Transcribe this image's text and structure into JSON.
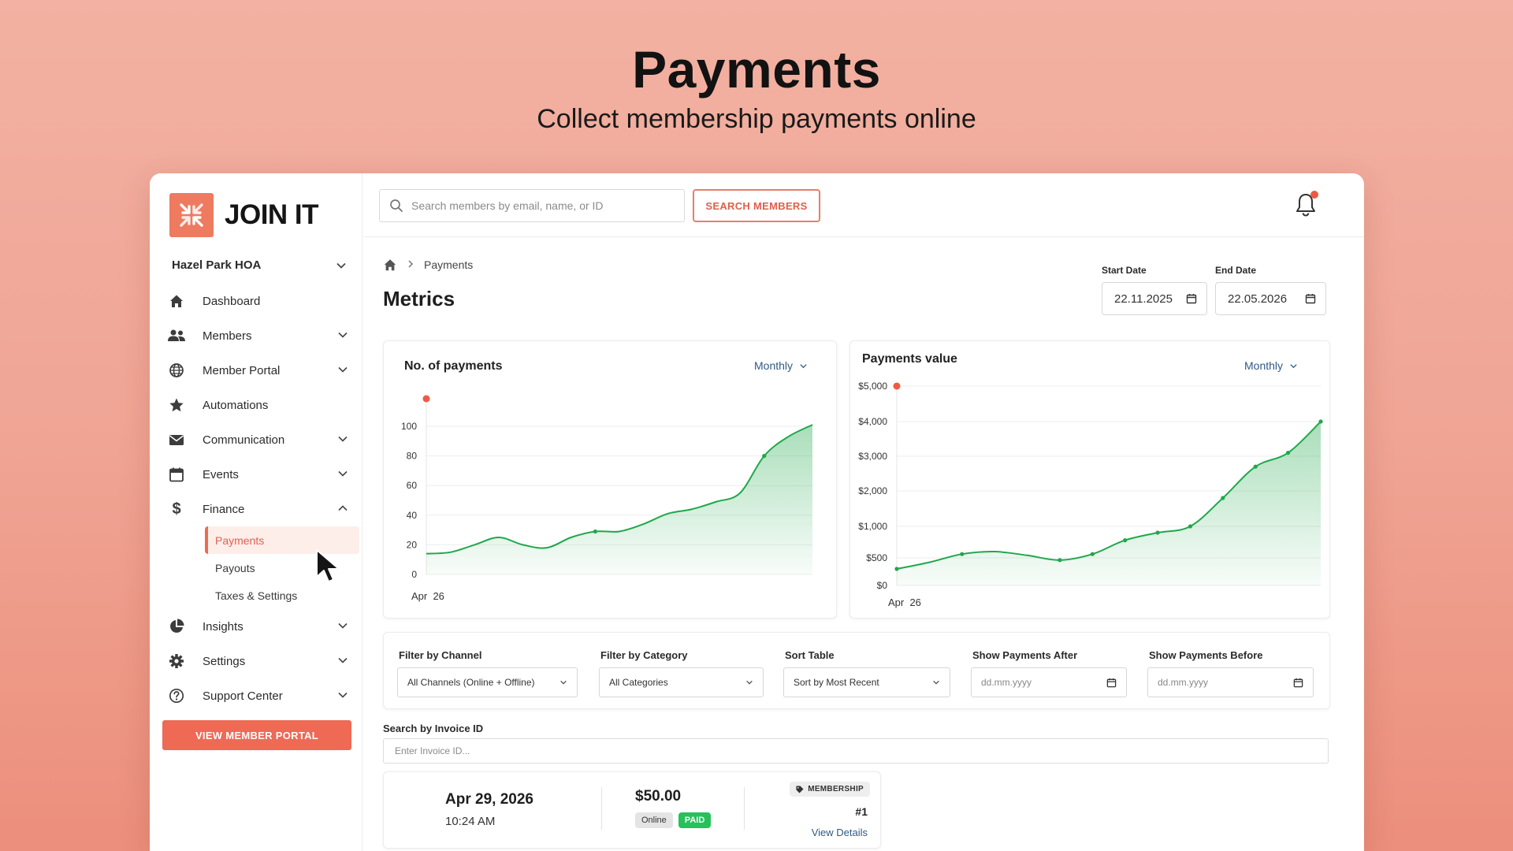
{
  "hero": {
    "title": "Payments",
    "subtitle": "Collect membership payments online"
  },
  "brand": {
    "name": "JOIN IT",
    "accent": "#ee6a55"
  },
  "sidebar": {
    "org": "Hazel Park HOA",
    "items": [
      {
        "label": "Dashboard",
        "icon": "home-icon"
      },
      {
        "label": "Members",
        "icon": "users-icon"
      },
      {
        "label": "Member Portal",
        "icon": "globe-icon"
      },
      {
        "label": "Automations",
        "icon": "star-icon"
      },
      {
        "label": "Communication",
        "icon": "mail-icon"
      },
      {
        "label": "Events",
        "icon": "calendar-icon"
      },
      {
        "label": "Finance",
        "icon": "dollar-icon"
      },
      {
        "label": "Insights",
        "icon": "pie-chart-icon"
      },
      {
        "label": "Settings",
        "icon": "gear-icon"
      },
      {
        "label": "Support Center",
        "icon": "help-circle-icon"
      }
    ],
    "finance_sub": [
      "Payments",
      "Payouts",
      "Taxes & Settings"
    ],
    "portal_button": "VIEW MEMBER PORTAL"
  },
  "topbar": {
    "search_placeholder": "Search members by email, name, or ID",
    "search_button": "SEARCH MEMBERS"
  },
  "breadcrumb": {
    "current": "Payments"
  },
  "page": {
    "title": "Metrics",
    "start_date_label": "Start Date",
    "start_date": "22.11.2025",
    "end_date_label": "End Date",
    "end_date": "22.05.2026"
  },
  "charts": {
    "payments_count": {
      "title": "No. of payments",
      "period": "Monthly",
      "x_label": "Apr  26"
    },
    "payments_value": {
      "title": "Payments value",
      "period": "Monthly",
      "x_label": "Apr  26"
    }
  },
  "chart_data": [
    {
      "type": "area",
      "title": "No. of payments",
      "x_tick": "Apr  26",
      "yticks": [
        "0",
        "20",
        "40",
        "60",
        "80",
        "100"
      ],
      "ylim": [
        0,
        120
      ],
      "series": [
        {
          "values": [
            14,
            15,
            20,
            25,
            20,
            18,
            25,
            29,
            29,
            34,
            41,
            44,
            49,
            55,
            80,
            93,
            101
          ]
        }
      ],
      "grid": true,
      "line_color": "#1fa84a",
      "marker_color": "#ef5a44"
    },
    {
      "type": "area",
      "title": "Payments value",
      "x_tick": "Apr  26",
      "yticks": [
        "$0",
        "$500",
        "$1,000",
        "$2,000",
        "$3,000",
        "$4,000",
        "$5,000"
      ],
      "ytick_values": [
        0,
        500,
        1000,
        2000,
        3000,
        4000,
        5000
      ],
      "series": [
        {
          "values": [
            300,
            420,
            560,
            600,
            540,
            460,
            560,
            780,
            900,
            1000,
            1800,
            2700,
            3100,
            4000
          ]
        }
      ],
      "grid": true,
      "line_color": "#1fa84a",
      "marker_color": "#ef5a44"
    }
  ],
  "filters": {
    "channel": {
      "label": "Filter by Channel",
      "value": "All Channels (Online + Offline)"
    },
    "category": {
      "label": "Filter by Category",
      "value": "All Categories"
    },
    "sort": {
      "label": "Sort Table",
      "value": "Sort by Most Recent"
    },
    "after": {
      "label": "Show Payments After",
      "placeholder": "dd.mm.yyyy"
    },
    "before": {
      "label": "Show Payments Before",
      "placeholder": "dd.mm.yyyy"
    }
  },
  "invoice": {
    "label": "Search by Invoice ID",
    "placeholder": "Enter Invoice ID..."
  },
  "payment": {
    "date": "Apr 29, 2026",
    "time": "10:24 AM",
    "amount": "$50.00",
    "channel": "Online",
    "status": "PAID",
    "category": "MEMBERSHIP",
    "number": "#1",
    "details_link": "View Details"
  }
}
